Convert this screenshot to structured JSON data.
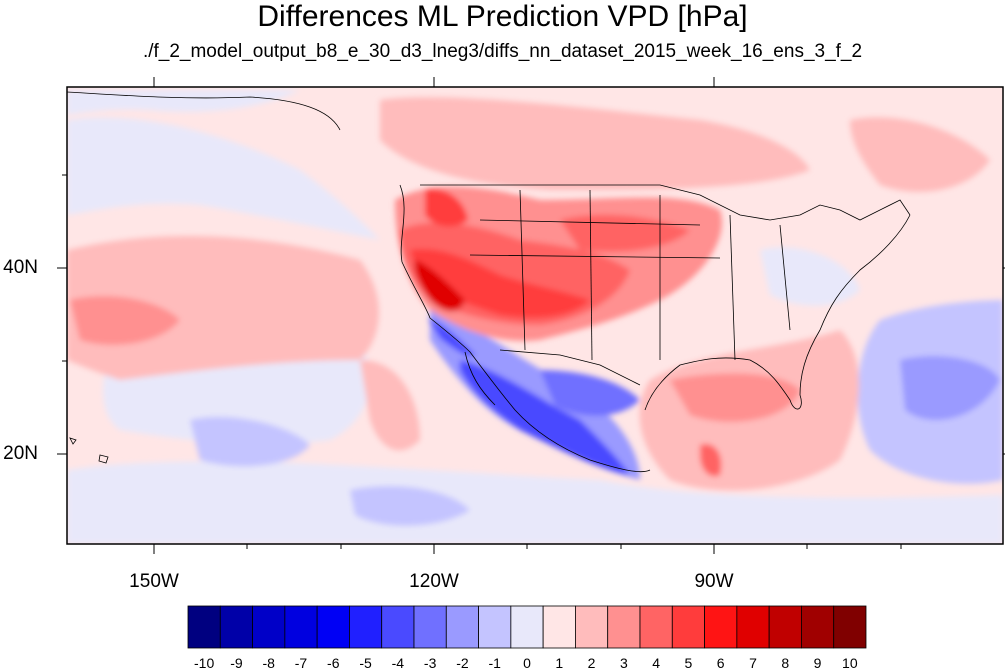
{
  "title": "Differences ML Prediction VPD [hPa]",
  "subtitle": "./f_2_model_output_b8_e_30_d3_lneg3/diffs_nn_dataset_2015_week_16_ens_3_f_2",
  "map": {
    "projection": "cylindrical-equidistant",
    "lon_range": [
      -160,
      -60
    ],
    "lat_range": [
      10,
      59
    ],
    "x_tick_labels": [
      {
        "lon": -150,
        "label": "150W"
      },
      {
        "lon": -120,
        "label": "120W"
      },
      {
        "lon": -90,
        "label": "90W"
      }
    ],
    "y_tick_labels": [
      {
        "lat": 40,
        "label": "40N"
      },
      {
        "lat": 20,
        "label": "20N"
      }
    ],
    "overlays": [
      "coastlines",
      "US state boundaries",
      "national borders"
    ]
  },
  "colorbar": {
    "labels": [
      "-10",
      "-9",
      "-8",
      "-7",
      "-6",
      "-5",
      "-4",
      "-3",
      "-2",
      "-1",
      "0",
      "1",
      "2",
      "3",
      "4",
      "5",
      "6",
      "7",
      "8",
      "9",
      "10"
    ],
    "colors": [
      "#000080",
      "#0000a8",
      "#0000c8",
      "#0000e0",
      "#0000f5",
      "#2020ff",
      "#4a4aff",
      "#7070ff",
      "#9a9aff",
      "#c4c4ff",
      "#e8e8fa",
      "#ffe6e6",
      "#ffbcbc",
      "#ff9090",
      "#ff6464",
      "#ff3c3c",
      "#ff1414",
      "#e00000",
      "#c00000",
      "#a00000",
      "#800000"
    ]
  }
}
